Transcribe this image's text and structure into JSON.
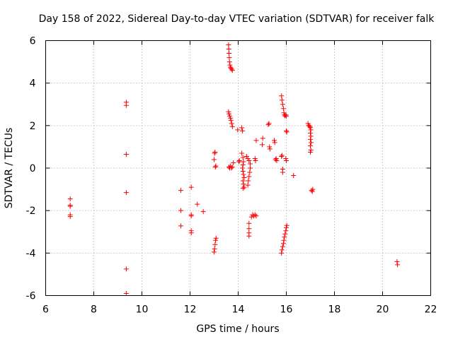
{
  "chart_data": {
    "type": "scatter",
    "title": "Day 158 of 2022, Sidereal Day-to-day VTEC variation (SDTVAR) for receiver falk",
    "xlabel": "GPS time / hours",
    "ylabel": "SDTVAR / TECUs",
    "xlim": [
      6,
      22
    ],
    "ylim": [
      -6,
      6
    ],
    "x_ticks": [
      6,
      8,
      10,
      12,
      14,
      16,
      18,
      20,
      22
    ],
    "x_tick_labels": [
      "6",
      "8",
      "10",
      "12",
      "14",
      "16",
      "18",
      "20",
      "22"
    ],
    "y_ticks": [
      -6,
      -4,
      -2,
      0,
      2,
      4,
      6
    ],
    "y_tick_labels": [
      "-6",
      "-4",
      "-2",
      "0",
      "2",
      "4",
      "6"
    ],
    "grid": true,
    "marker": "plus",
    "color": "#ff0000",
    "series": [
      {
        "name": "SDTVAR",
        "points": [
          [
            7.02,
            -1.45
          ],
          [
            7.02,
            -1.75
          ],
          [
            7.02,
            -1.8
          ],
          [
            7.02,
            -2.2
          ],
          [
            7.02,
            -2.28
          ],
          [
            9.35,
            3.1
          ],
          [
            9.35,
            2.95
          ],
          [
            9.35,
            0.65
          ],
          [
            9.35,
            -1.15
          ],
          [
            9.35,
            -4.75
          ],
          [
            9.35,
            -5.9
          ],
          [
            11.62,
            -1.05
          ],
          [
            11.62,
            -2.0
          ],
          [
            11.62,
            -2.72
          ],
          [
            12.05,
            -0.9
          ],
          [
            12.05,
            -2.2
          ],
          [
            12.05,
            -2.25
          ],
          [
            12.05,
            -2.95
          ],
          [
            12.05,
            -3.05
          ],
          [
            12.3,
            -1.7
          ],
          [
            12.55,
            -2.05
          ],
          [
            13.0,
            0.4
          ],
          [
            13.02,
            0.7
          ],
          [
            13.04,
            0.75
          ],
          [
            13.05,
            0.05
          ],
          [
            13.07,
            0.1
          ],
          [
            13.0,
            -3.95
          ],
          [
            13.02,
            -3.8
          ],
          [
            13.04,
            -3.6
          ],
          [
            13.06,
            -3.4
          ],
          [
            13.08,
            -3.3
          ],
          [
            13.6,
            5.8
          ],
          [
            13.61,
            5.6
          ],
          [
            13.62,
            5.4
          ],
          [
            13.63,
            5.2
          ],
          [
            13.64,
            5.0
          ],
          [
            13.66,
            4.85
          ],
          [
            13.68,
            4.75
          ],
          [
            13.7,
            4.7
          ],
          [
            13.73,
            4.65
          ],
          [
            13.76,
            4.6
          ],
          [
            13.6,
            2.65
          ],
          [
            13.62,
            2.55
          ],
          [
            13.65,
            2.45
          ],
          [
            13.68,
            2.35
          ],
          [
            13.7,
            2.25
          ],
          [
            13.73,
            2.1
          ],
          [
            13.76,
            1.95
          ],
          [
            13.62,
            0.05
          ],
          [
            13.65,
            0.0
          ],
          [
            13.68,
            0.1
          ],
          [
            13.72,
            0.0
          ],
          [
            13.75,
            0.05
          ],
          [
            13.8,
            0.25
          ],
          [
            13.98,
            1.8
          ],
          [
            14.03,
            0.3
          ],
          [
            14.05,
            0.35
          ],
          [
            14.15,
            1.9
          ],
          [
            14.18,
            1.75
          ],
          [
            14.15,
            0.7
          ],
          [
            14.2,
            0.5
          ],
          [
            14.22,
            0.3
          ],
          [
            14.2,
            0.15
          ],
          [
            14.18,
            0.0
          ],
          [
            14.2,
            -0.15
          ],
          [
            14.22,
            -0.3
          ],
          [
            14.25,
            -0.45
          ],
          [
            14.2,
            -0.6
          ],
          [
            14.22,
            -0.75
          ],
          [
            14.25,
            -0.9
          ],
          [
            14.2,
            -0.95
          ],
          [
            14.35,
            0.55
          ],
          [
            14.4,
            0.45
          ],
          [
            14.45,
            0.35
          ],
          [
            14.5,
            0.2
          ],
          [
            14.5,
            0.0
          ],
          [
            14.48,
            -0.2
          ],
          [
            14.45,
            -0.4
          ],
          [
            14.42,
            -0.6
          ],
          [
            14.4,
            -0.8
          ],
          [
            14.45,
            -2.6
          ],
          [
            14.45,
            -2.85
          ],
          [
            14.45,
            -3.05
          ],
          [
            14.45,
            -3.2
          ],
          [
            14.55,
            -2.3
          ],
          [
            14.6,
            -2.2
          ],
          [
            14.65,
            -2.25
          ],
          [
            14.7,
            -2.2
          ],
          [
            14.75,
            -2.25
          ],
          [
            14.7,
            0.45
          ],
          [
            14.72,
            0.35
          ],
          [
            14.75,
            1.3
          ],
          [
            15.0,
            1.1
          ],
          [
            15.02,
            1.4
          ],
          [
            15.25,
            2.05
          ],
          [
            15.28,
            2.1
          ],
          [
            15.3,
            1.0
          ],
          [
            15.32,
            0.9
          ],
          [
            15.5,
            1.3
          ],
          [
            15.52,
            1.2
          ],
          [
            15.55,
            0.4
          ],
          [
            15.58,
            0.45
          ],
          [
            15.6,
            0.35
          ],
          [
            15.8,
            0.55
          ],
          [
            15.82,
            0.6
          ],
          [
            15.85,
            -0.05
          ],
          [
            15.85,
            -0.2
          ],
          [
            15.8,
            3.4
          ],
          [
            15.82,
            3.2
          ],
          [
            15.85,
            3.0
          ],
          [
            15.88,
            2.8
          ],
          [
            15.9,
            2.6
          ],
          [
            15.92,
            2.5
          ],
          [
            15.95,
            2.45
          ],
          [
            15.98,
            2.5
          ],
          [
            16.0,
            2.45
          ],
          [
            15.98,
            0.45
          ],
          [
            16.0,
            0.35
          ],
          [
            16.0,
            1.75
          ],
          [
            16.02,
            1.7
          ],
          [
            15.8,
            -4.0
          ],
          [
            15.82,
            -3.85
          ],
          [
            15.85,
            -3.7
          ],
          [
            15.88,
            -3.55
          ],
          [
            15.9,
            -3.4
          ],
          [
            15.92,
            -3.25
          ],
          [
            15.95,
            -3.1
          ],
          [
            15.98,
            -2.95
          ],
          [
            16.0,
            -2.8
          ],
          [
            16.02,
            -2.7
          ],
          [
            16.3,
            -0.35
          ],
          [
            16.9,
            2.1
          ],
          [
            16.92,
            2.0
          ],
          [
            16.95,
            2.0
          ],
          [
            16.98,
            1.95
          ],
          [
            17.0,
            1.9
          ],
          [
            17.02,
            1.8
          ],
          [
            17.0,
            1.65
          ],
          [
            17.02,
            1.5
          ],
          [
            17.0,
            1.35
          ],
          [
            17.03,
            1.2
          ],
          [
            17.0,
            1.05
          ],
          [
            17.02,
            0.85
          ],
          [
            17.0,
            0.75
          ],
          [
            17.05,
            -1.05
          ],
          [
            17.08,
            -1.1
          ],
          [
            17.1,
            -1.0
          ],
          [
            20.6,
            -4.4
          ],
          [
            20.62,
            -4.55
          ]
        ]
      }
    ]
  }
}
